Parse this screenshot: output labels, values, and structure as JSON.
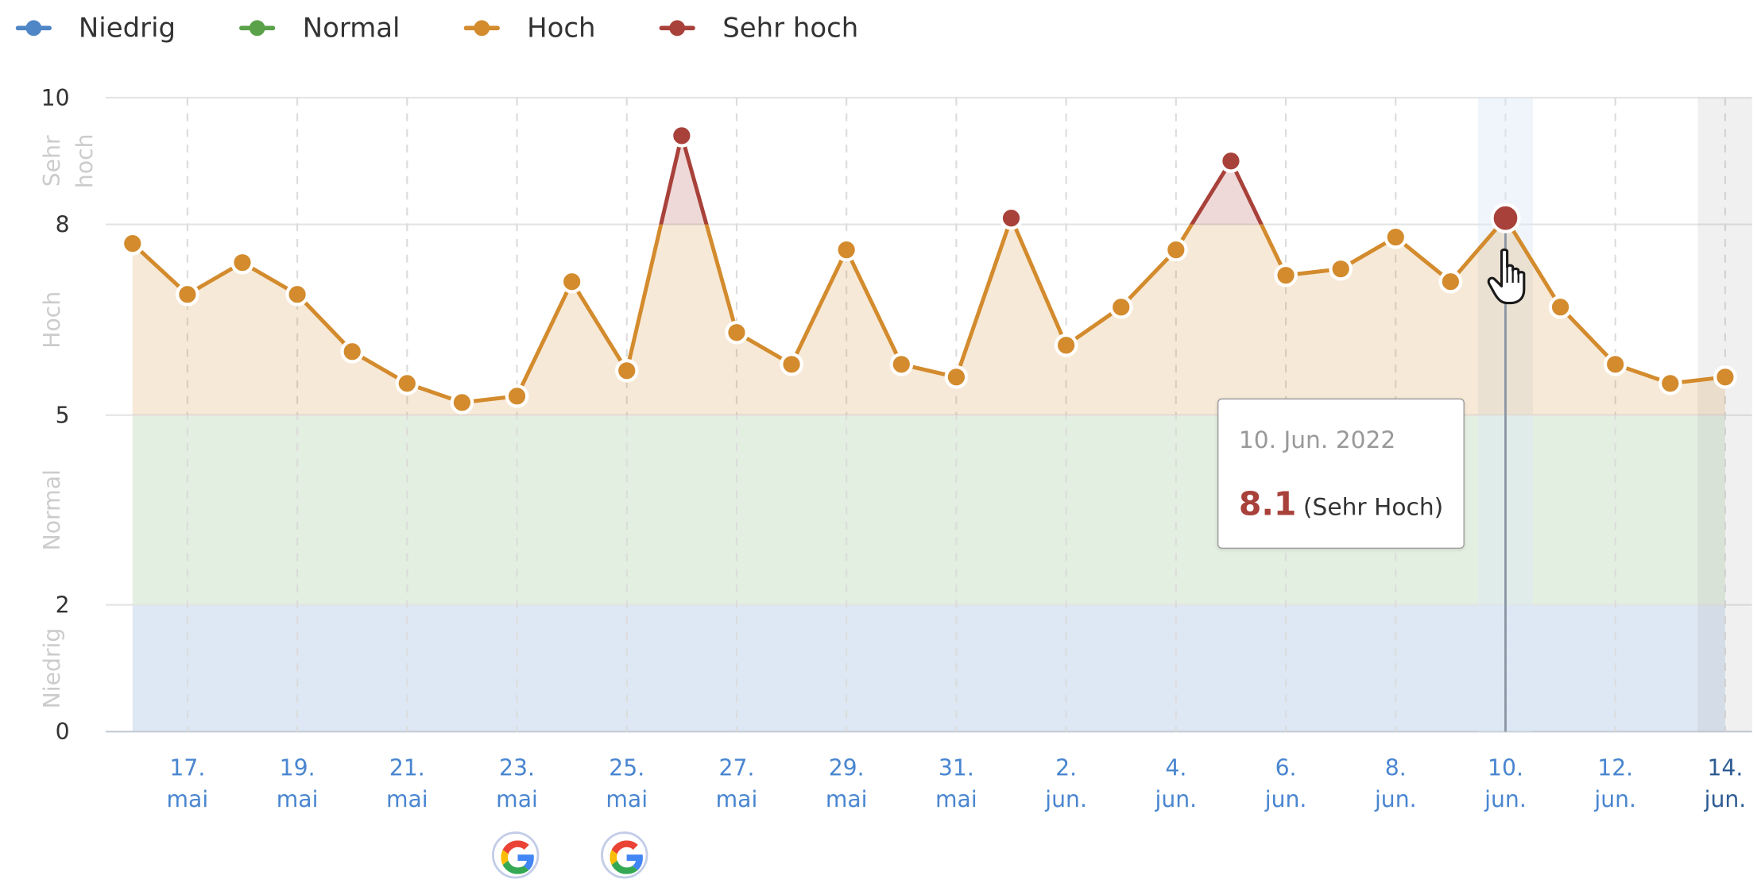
{
  "legend": [
    {
      "label": "Niedrig",
      "color": "#4f86c6"
    },
    {
      "label": "Normal",
      "color": "#5aa14a"
    },
    {
      "label": "Hoch",
      "color": "#d38b2d"
    },
    {
      "label": "Sehr hoch",
      "color": "#a8413a"
    }
  ],
  "tooltip": {
    "date": "10. Jun. 2022",
    "value": "8.1",
    "category": "(Sehr Hoch)"
  },
  "google_badges": [
    {
      "date": "23. mai",
      "icon": "google-icon"
    },
    {
      "date": "25. mai",
      "icon": "google-icon"
    }
  ],
  "chart_data": {
    "type": "area",
    "ylim": [
      0,
      10
    ],
    "yticks": [
      "0",
      "2",
      "5",
      "8",
      "10"
    ],
    "bands": [
      {
        "label": "Niedrig",
        "from": 0,
        "to": 2,
        "color": "#4f86c6"
      },
      {
        "label": "Normal",
        "from": 2,
        "to": 5,
        "color": "#5aa14a"
      },
      {
        "label": "Hoch",
        "from": 5,
        "to": 8,
        "color": "#d38b2d"
      },
      {
        "label": "Sehr hoch",
        "from": 8,
        "to": 10,
        "color": "#a8413a"
      }
    ],
    "x_ticks": [
      {
        "date": "2022-05-17",
        "line1": "17.",
        "line2": "mai"
      },
      {
        "date": "2022-05-19",
        "line1": "19.",
        "line2": "mai"
      },
      {
        "date": "2022-05-21",
        "line1": "21.",
        "line2": "mai"
      },
      {
        "date": "2022-05-23",
        "line1": "23.",
        "line2": "mai"
      },
      {
        "date": "2022-05-25",
        "line1": "25.",
        "line2": "mai"
      },
      {
        "date": "2022-05-27",
        "line1": "27.",
        "line2": "mai"
      },
      {
        "date": "2022-05-29",
        "line1": "29.",
        "line2": "mai"
      },
      {
        "date": "2022-05-31",
        "line1": "31.",
        "line2": "mai"
      },
      {
        "date": "2022-06-02",
        "line1": "2.",
        "line2": "jun."
      },
      {
        "date": "2022-06-04",
        "line1": "4.",
        "line2": "jun."
      },
      {
        "date": "2022-06-06",
        "line1": "6.",
        "line2": "jun."
      },
      {
        "date": "2022-06-08",
        "line1": "8.",
        "line2": "jun."
      },
      {
        "date": "2022-06-10",
        "line1": "10.",
        "line2": "jun."
      },
      {
        "date": "2022-06-12",
        "line1": "12.",
        "line2": "jun."
      },
      {
        "date": "2022-06-14",
        "line1": "14.",
        "line2": "jun."
      }
    ],
    "x": [
      "2022-05-16",
      "2022-05-17",
      "2022-05-18",
      "2022-05-19",
      "2022-05-20",
      "2022-05-21",
      "2022-05-22",
      "2022-05-23",
      "2022-05-24",
      "2022-05-25",
      "2022-05-26",
      "2022-05-27",
      "2022-05-28",
      "2022-05-29",
      "2022-05-30",
      "2022-05-31",
      "2022-06-01",
      "2022-06-02",
      "2022-06-03",
      "2022-06-04",
      "2022-06-05",
      "2022-06-06",
      "2022-06-07",
      "2022-06-08",
      "2022-06-09",
      "2022-06-10",
      "2022-06-11",
      "2022-06-12",
      "2022-06-13",
      "2022-06-14"
    ],
    "values": [
      7.7,
      6.9,
      7.4,
      6.9,
      6.0,
      5.5,
      5.2,
      5.3,
      7.1,
      5.7,
      9.4,
      6.3,
      5.8,
      7.6,
      5.8,
      5.6,
      8.1,
      6.1,
      6.7,
      7.6,
      9.0,
      7.2,
      7.3,
      7.8,
      7.1,
      8.1,
      6.7,
      5.8,
      5.5,
      5.6
    ],
    "highlight": {
      "date": "2022-06-10",
      "value": 8.1
    },
    "forecast_from": "2022-06-14"
  }
}
